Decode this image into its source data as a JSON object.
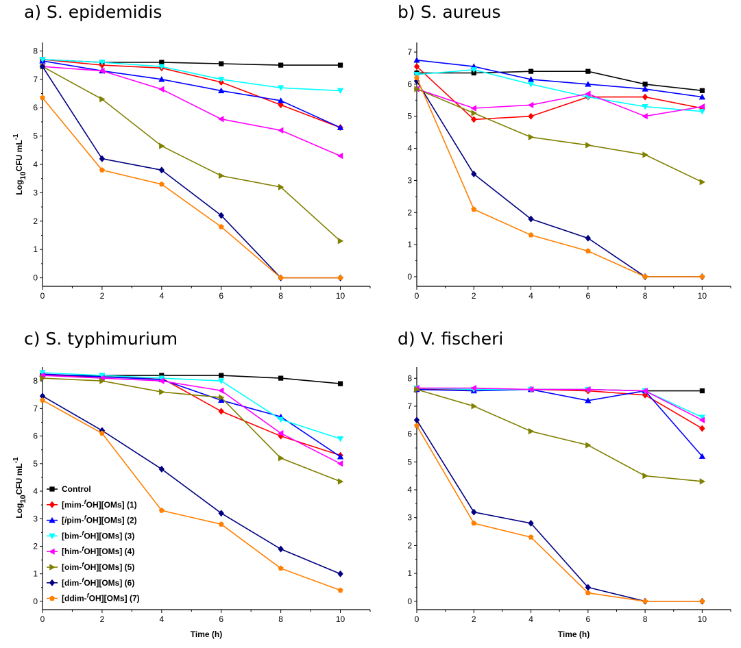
{
  "figure": {
    "legend_entries": [
      {
        "prefix": "",
        "sup": "",
        "suffix": "Control"
      },
      {
        "prefix": "[mim-",
        "sup": "f",
        "suffix": "OH][OMs] (1)"
      },
      {
        "prefix": "[",
        "sup": "",
        "suffix": ""
      },
      {
        "prefix": "[bim-",
        "sup": "f",
        "suffix": "OH][OMs] (3)"
      },
      {
        "prefix": "[him-",
        "sup": "f",
        "suffix": "OH][OMs] (4)"
      },
      {
        "prefix": "[oim-",
        "sup": "f",
        "suffix": "OH][OMs] (5)"
      },
      {
        "prefix": "[dim-",
        "sup": "f",
        "suffix": "OH][OMs] (6)"
      },
      {
        "prefix": "[ddim-",
        "sup": "f",
        "suffix": "OH][OMs] (7)"
      }
    ],
    "legend_entry_2": {
      "pre": "[",
      "ital": "i",
      "mid": "pim-",
      "sup": "f",
      "post": "OH][OMs] (2)"
    },
    "ylabel": {
      "main": "Log",
      "sub": "10",
      "mid": "CFU mL",
      "sup": "-1"
    },
    "xlabel": "Time (h)"
  },
  "chart_data": [
    {
      "type": "line",
      "title": "a) S. epidemidis",
      "xlabel": "",
      "ylabel": {
        "main": "Log",
        "sub": "10",
        "mid": "CFU mL",
        "sup": "-1"
      },
      "xlim": [
        0,
        11
      ],
      "ylim": [
        -0.3,
        8.3
      ],
      "xticks": [
        0,
        2,
        4,
        6,
        8,
        10
      ],
      "yticks": [
        0,
        1,
        2,
        3,
        4,
        5,
        6,
        7,
        8
      ],
      "x": [
        0,
        2,
        4,
        6,
        8,
        10
      ],
      "series": [
        {
          "name": "Control",
          "color": "#000000",
          "marker": "square",
          "values": [
            7.7,
            7.6,
            7.6,
            7.55,
            7.5,
            7.5
          ]
        },
        {
          "name": "[mim-fOH][OMs] (1)",
          "color": "#ff0000",
          "marker": "diamond",
          "values": [
            7.7,
            7.5,
            7.4,
            6.9,
            6.1,
            5.3
          ]
        },
        {
          "name": "[ipim-fOH][OMs] (2)",
          "color": "#0000ff",
          "marker": "triangle-up",
          "values": [
            7.65,
            7.3,
            7.0,
            6.6,
            6.25,
            5.3
          ]
        },
        {
          "name": "[bim-fOH][OMs] (3)",
          "color": "#00ffff",
          "marker": "triangle-down",
          "values": [
            7.7,
            7.6,
            7.45,
            7.0,
            6.7,
            6.6
          ]
        },
        {
          "name": "[him-fOH][OMs] (4)",
          "color": "#ff00ff",
          "marker": "triangle-left",
          "values": [
            7.45,
            7.3,
            6.65,
            5.6,
            5.2,
            4.3
          ]
        },
        {
          "name": "[oim-fOH][OMs] (5)",
          "color": "#808000",
          "marker": "triangle-right",
          "values": [
            7.45,
            6.3,
            4.65,
            3.6,
            3.2,
            1.3
          ]
        },
        {
          "name": "[dim-fOH][OMs] (6)",
          "color": "#000080",
          "marker": "diamond",
          "values": [
            7.45,
            4.2,
            3.8,
            2.2,
            0.0,
            0.0
          ]
        },
        {
          "name": "[ddim-fOH][OMs] (7)",
          "color": "#ff8000",
          "marker": "pentagon",
          "values": [
            6.35,
            3.8,
            3.3,
            1.8,
            0.0,
            0.0
          ]
        }
      ]
    },
    {
      "type": "line",
      "title": "b) S. aureus",
      "xlabel": "",
      "ylabel": "",
      "xlim": [
        0,
        11
      ],
      "ylim": [
        -0.3,
        7.3
      ],
      "xticks": [
        0,
        2,
        4,
        6,
        8,
        10
      ],
      "yticks": [
        0,
        1,
        2,
        3,
        4,
        5,
        6,
        7
      ],
      "x": [
        0,
        2,
        4,
        6,
        8,
        10
      ],
      "series": [
        {
          "name": "Control",
          "color": "#000000",
          "marker": "square",
          "values": [
            6.35,
            6.35,
            6.4,
            6.4,
            6.0,
            5.8
          ]
        },
        {
          "name": "[mim-fOH][OMs] (1)",
          "color": "#ff0000",
          "marker": "diamond",
          "values": [
            6.55,
            4.9,
            5.0,
            5.6,
            5.6,
            5.25
          ]
        },
        {
          "name": "[ipim-fOH][OMs] (2)",
          "color": "#0000ff",
          "marker": "triangle-up",
          "values": [
            6.75,
            6.55,
            6.15,
            6.0,
            5.85,
            5.6
          ]
        },
        {
          "name": "[bim-fOH][OMs] (3)",
          "color": "#00ffff",
          "marker": "triangle-down",
          "values": [
            6.3,
            6.45,
            6.0,
            5.6,
            5.3,
            5.15
          ]
        },
        {
          "name": "[him-fOH][OMs] (4)",
          "color": "#ff00ff",
          "marker": "triangle-left",
          "values": [
            5.85,
            5.25,
            5.35,
            5.7,
            5.0,
            5.3
          ]
        },
        {
          "name": "[oim-fOH][OMs] (5)",
          "color": "#808000",
          "marker": "triangle-right",
          "values": [
            5.85,
            5.1,
            4.35,
            4.1,
            3.8,
            2.95
          ]
        },
        {
          "name": "[dim-fOH][OMs] (6)",
          "color": "#000080",
          "marker": "diamond",
          "values": [
            6.1,
            3.2,
            1.8,
            1.2,
            0.0,
            0.0
          ]
        },
        {
          "name": "[ddim-fOH][OMs] (7)",
          "color": "#ff8000",
          "marker": "pentagon",
          "values": [
            6.2,
            2.1,
            1.3,
            0.8,
            0.0,
            0.0
          ]
        }
      ]
    },
    {
      "type": "line",
      "title": "c) S. typhimurium",
      "xlabel": "Time (h)",
      "ylabel": {
        "main": "Log",
        "sub": "10",
        "mid": "CFU mL",
        "sup": "-1"
      },
      "xlim": [
        0,
        11
      ],
      "ylim": [
        -0.3,
        8.5
      ],
      "xticks": [
        0,
        2,
        4,
        6,
        8,
        10
      ],
      "yticks": [
        0,
        1,
        2,
        3,
        4,
        5,
        6,
        7,
        8
      ],
      "x": [
        0,
        2,
        4,
        6,
        8,
        10
      ],
      "series": [
        {
          "name": "Control",
          "color": "#000000",
          "marker": "square",
          "values": [
            8.2,
            8.2,
            8.2,
            8.2,
            8.1,
            7.9
          ]
        },
        {
          "name": "[mim-fOH][OMs] (1)",
          "color": "#ff0000",
          "marker": "diamond",
          "values": [
            8.2,
            8.15,
            8.1,
            6.9,
            6.0,
            5.3
          ]
        },
        {
          "name": "[ipim-fOH][OMs] (2)",
          "color": "#0000ff",
          "marker": "triangle-up",
          "values": [
            8.25,
            8.15,
            8.05,
            7.3,
            6.7,
            5.25
          ]
        },
        {
          "name": "[bim-fOH][OMs] (3)",
          "color": "#00ffff",
          "marker": "triangle-down",
          "values": [
            8.3,
            8.2,
            8.1,
            8.0,
            6.6,
            5.9
          ]
        },
        {
          "name": "[him-fOH][OMs] (4)",
          "color": "#ff00ff",
          "marker": "triangle-left",
          "values": [
            8.2,
            8.1,
            8.0,
            7.65,
            6.1,
            5.0
          ]
        },
        {
          "name": "[oim-fOH][OMs] (5)",
          "color": "#808000",
          "marker": "triangle-right",
          "values": [
            8.1,
            8.0,
            7.6,
            7.4,
            5.2,
            4.35
          ]
        },
        {
          "name": "[dim-fOH][OMs] (6)",
          "color": "#000080",
          "marker": "diamond",
          "values": [
            7.45,
            6.2,
            4.8,
            3.2,
            1.9,
            1.0
          ]
        },
        {
          "name": "[ddim-fOH][OMs] (7)",
          "color": "#ff8000",
          "marker": "pentagon",
          "values": [
            7.3,
            6.1,
            3.3,
            2.8,
            1.2,
            0.4
          ]
        }
      ]
    },
    {
      "type": "line",
      "title": "d) V. fischeri",
      "xlabel": "Time (h)",
      "ylabel": "",
      "xlim": [
        0,
        11
      ],
      "ylim": [
        -0.3,
        8.4
      ],
      "xticks": [
        0,
        2,
        4,
        6,
        8,
        10
      ],
      "yticks": [
        0,
        1,
        2,
        3,
        4,
        5,
        6,
        7,
        8
      ],
      "x": [
        0,
        2,
        4,
        6,
        8,
        10
      ],
      "series": [
        {
          "name": "Control",
          "color": "#000000",
          "marker": "square",
          "values": [
            7.6,
            7.6,
            7.6,
            7.6,
            7.55,
            7.55
          ]
        },
        {
          "name": "[mim-fOH][OMs] (1)",
          "color": "#ff0000",
          "marker": "diamond",
          "values": [
            7.6,
            7.6,
            7.6,
            7.55,
            7.4,
            6.2
          ]
        },
        {
          "name": "[ipim-fOH][OMs] (2)",
          "color": "#0000ff",
          "marker": "triangle-up",
          "values": [
            7.6,
            7.55,
            7.6,
            7.2,
            7.55,
            5.2
          ]
        },
        {
          "name": "[bim-fOH][OMs] (3)",
          "color": "#00ffff",
          "marker": "triangle-down",
          "values": [
            7.65,
            7.6,
            7.6,
            7.6,
            7.55,
            6.6
          ]
        },
        {
          "name": "[him-fOH][OMs] (4)",
          "color": "#ff00ff",
          "marker": "triangle-left",
          "values": [
            7.65,
            7.65,
            7.6,
            7.6,
            7.55,
            6.5
          ]
        },
        {
          "name": "[oim-fOH][OMs] (5)",
          "color": "#808000",
          "marker": "triangle-right",
          "values": [
            7.6,
            7.0,
            6.1,
            5.6,
            4.5,
            4.3
          ]
        },
        {
          "name": "[dim-fOH][OMs] (6)",
          "color": "#000080",
          "marker": "diamond",
          "values": [
            6.5,
            3.2,
            2.8,
            0.5,
            0.0,
            0.0
          ]
        },
        {
          "name": "[ddim-fOH][OMs] (7)",
          "color": "#ff8000",
          "marker": "pentagon",
          "values": [
            6.3,
            2.8,
            2.3,
            0.3,
            0.0,
            0.0
          ]
        }
      ]
    }
  ]
}
